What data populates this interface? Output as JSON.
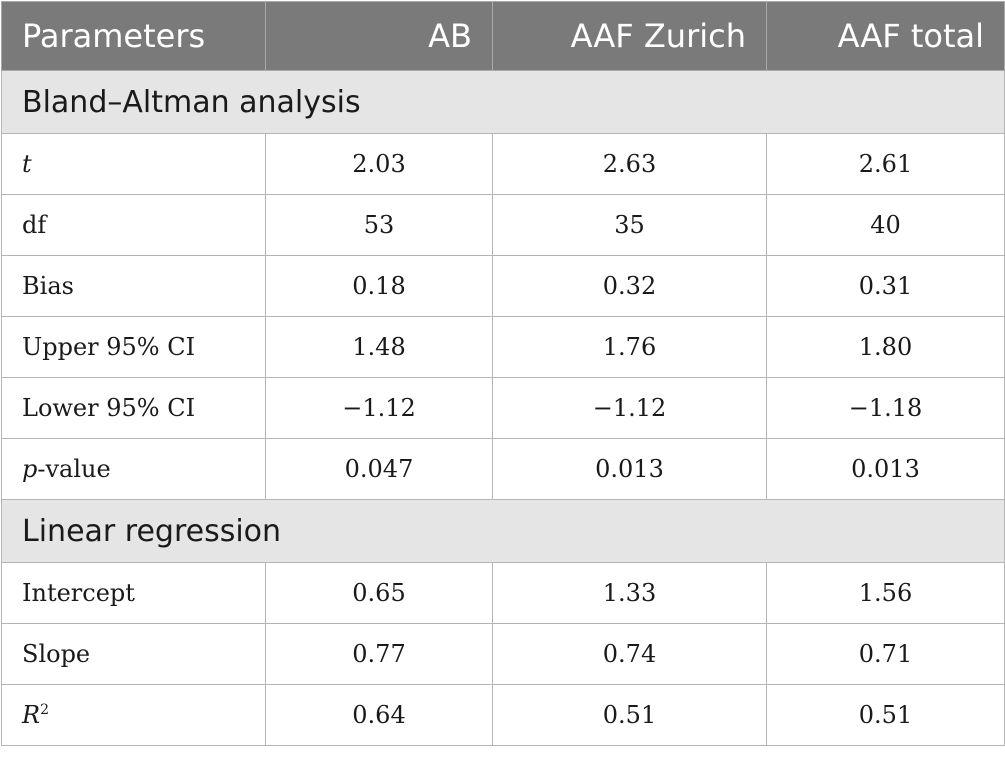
{
  "header": [
    "Parameters",
    "AB",
    "AAF Zurich",
    "AAF total"
  ],
  "sections": [
    {
      "title": "Bland–Altman analysis",
      "rows": [
        {
          "label": "t",
          "values": [
            "2.03",
            "2.63",
            "2.61"
          ]
        },
        {
          "label": "df",
          "values": [
            "53",
            "35",
            "40"
          ]
        },
        {
          "label": "Bias",
          "values": [
            "0.18",
            "0.32",
            "0.31"
          ]
        },
        {
          "label": "Upper 95% CI",
          "values": [
            "1.48",
            "1.76",
            "1.80"
          ]
        },
        {
          "label": "Lower 95% CI",
          "values": [
            "−1.12",
            "−1.12",
            "−1.18"
          ]
        },
        {
          "label_italic": "p",
          "label_rest": "-value",
          "values": [
            "0.047",
            "0.013",
            "0.013"
          ]
        }
      ]
    },
    {
      "title": "Linear regression",
      "rows": [
        {
          "label": "Intercept",
          "values": [
            "0.65",
            "1.33",
            "1.56"
          ]
        },
        {
          "label": "Slope",
          "values": [
            "0.77",
            "0.74",
            "0.71"
          ]
        },
        {
          "label_italic": "R",
          "label_sup": "2",
          "values": [
            "0.64",
            "0.51",
            "0.51"
          ]
        }
      ]
    }
  ]
}
